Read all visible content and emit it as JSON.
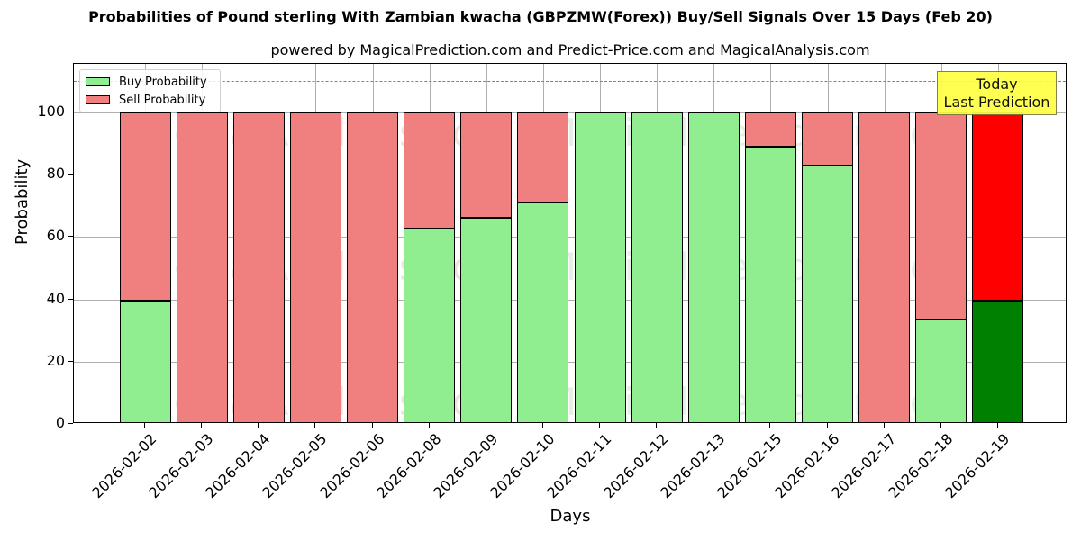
{
  "chart_data": {
    "type": "bar",
    "stacked": true,
    "title": "Probabilities of Pound sterling With Zambian kwacha (GBPZMW(Forex)) Buy/Sell Signals Over 15 Days (Feb 20)",
    "subtitle": "powered by MagicalPrediction.com and Predict-Price.com and MagicalAnalysis.com",
    "xlabel": "Days",
    "ylabel": "Probability",
    "ylim": [
      0,
      115
    ],
    "yticks": [
      0,
      20,
      40,
      60,
      80,
      100
    ],
    "grid": true,
    "legend_position": "upper left",
    "reference_line": {
      "y": 110,
      "style": "dashed",
      "color": "#808080"
    },
    "categories": [
      "2026-02-02",
      "2026-02-03",
      "2026-02-04",
      "2026-02-05",
      "2026-02-06",
      "2026-02-08",
      "2026-02-09",
      "2026-02-10",
      "2026-02-11",
      "2026-02-12",
      "2026-02-13",
      "2026-02-15",
      "2026-02-16",
      "2026-02-17",
      "2026-02-18",
      "2026-02-19"
    ],
    "series": [
      {
        "name": "Buy Probability",
        "color": "#90ee90",
        "values": [
          39.6,
          0,
          0,
          0,
          0,
          62.6,
          66.1,
          71.0,
          100,
          100,
          100,
          88.9,
          82.9,
          0,
          33.5,
          39.6
        ]
      },
      {
        "name": "Sell Probability",
        "color": "#f08080",
        "values": [
          60.4,
          100,
          100,
          100,
          100,
          37.4,
          33.9,
          29.0,
          0,
          0,
          0,
          11.1,
          17.1,
          100,
          66.5,
          60.4
        ]
      }
    ],
    "highlight": {
      "index": 15,
      "buy_color": "#008000",
      "sell_color": "#ff0000",
      "annotation": "Today\nLast Prediction"
    }
  },
  "legend": {
    "buy_label": "Buy Probability",
    "sell_label": "Sell Probability"
  },
  "annotation": {
    "line1": "Today",
    "line2": "Last Prediction"
  },
  "watermarks": [
    "MagicalAnalysis.com",
    "MagicalPrediction.com"
  ]
}
